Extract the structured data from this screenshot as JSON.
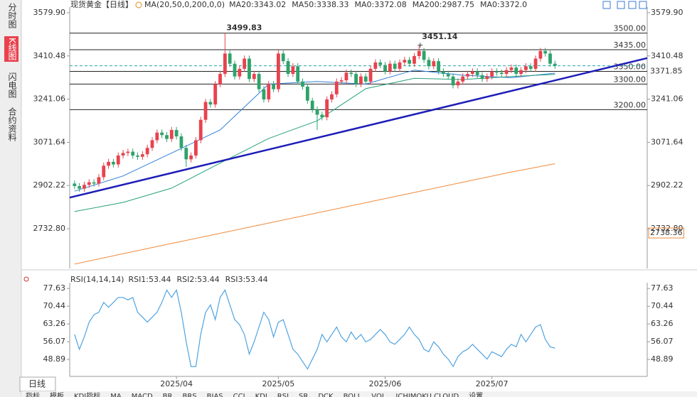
{
  "sidebar_tabs": [
    "分时图",
    "K线图",
    "闪电图",
    "合约资料"
  ],
  "selected_tab": 1,
  "timeframe": "日线",
  "indicator_tabs": [
    "指标",
    "模板",
    "KDJ指标",
    "MA",
    "MACD",
    "BR",
    "BRS",
    "BIAS",
    "CCI",
    "KDJ",
    "RSI",
    "SR",
    "DCK",
    "BOLL",
    "VOL",
    "ICHIMOKU CLOUD",
    "设置"
  ],
  "chart_data": [
    {
      "type": "candlestick",
      "title": "现货黄金",
      "period": "【日线】",
      "indicator_label": "MA(20,50,0,200,0,0)",
      "up_color": "#e8424e",
      "down_color": "#2ea36b",
      "xlim": [
        -1,
        118
      ],
      "open": [
        2910,
        2900,
        2890,
        2905,
        2915,
        2910,
        2935,
        2980,
        2995,
        2985,
        3020,
        3030,
        3035,
        3020,
        3015,
        3025,
        3050,
        3080,
        3110,
        3100,
        3085,
        3120,
        3095,
        3050,
        3005,
        3020,
        3080,
        3160,
        3230,
        3220,
        3300,
        3340,
        3420,
        3380,
        3330,
        3360,
        3400,
        3320,
        3340,
        3280,
        3240,
        3300,
        3280,
        3420,
        3390,
        3340,
        3370,
        3310,
        3290,
        3235,
        3200,
        3180,
        3170,
        3240,
        3260,
        3310,
        3315,
        3345,
        3340,
        3300,
        3330,
        3310,
        3360,
        3385,
        3375,
        3350,
        3380,
        3360,
        3385,
        3395,
        3380,
        3410,
        3430,
        3395,
        3370,
        3390,
        3350,
        3340,
        3330,
        3295,
        3310,
        3330,
        3340,
        3350,
        3335,
        3320,
        3330,
        3350,
        3345,
        3340,
        3355,
        3365,
        3340,
        3355,
        3370,
        3360,
        3400,
        3430,
        3420,
        3380
      ],
      "high": [
        2922,
        2912,
        2917,
        2927,
        2927,
        2947,
        2992,
        3007,
        3007,
        3032,
        3042,
        3047,
        3047,
        3032,
        3037,
        3062,
        3092,
        3122,
        3122,
        3112,
        3132,
        3132,
        3107,
        3062,
        3032,
        3092,
        3172,
        3242,
        3242,
        3312,
        3352,
        3499.83,
        3432,
        3392,
        3372,
        3412,
        3412,
        3352,
        3352,
        3292,
        3312,
        3312,
        3435,
        3432,
        3402,
        3382,
        3382,
        3322,
        3302,
        3247,
        3212,
        3192,
        3252,
        3272,
        3322,
        3327,
        3357,
        3357,
        3352,
        3342,
        3342,
        3372,
        3397,
        3397,
        3387,
        3392,
        3392,
        3397,
        3407,
        3407,
        3422,
        3451.14,
        3442,
        3407,
        3402,
        3402,
        3362,
        3352,
        3342,
        3322,
        3342,
        3352,
        3362,
        3362,
        3347,
        3342,
        3362,
        3362,
        3357,
        3367,
        3377,
        3377,
        3367,
        3382,
        3382,
        3412,
        3442,
        3442,
        3432,
        3392
      ],
      "low": [
        2888,
        2878,
        2878,
        2893,
        2898,
        2898,
        2923,
        2968,
        2973,
        2973,
        3008,
        3018,
        3008,
        3003,
        3003,
        3013,
        3038,
        3068,
        3088,
        3073,
        3073,
        3083,
        3038,
        2975,
        2993,
        3008,
        3068,
        3148,
        3208,
        3208,
        3288,
        3328,
        3368,
        3318,
        3318,
        3348,
        3308,
        3308,
        3268,
        3228,
        3228,
        3268,
        3268,
        3378,
        3328,
        3328,
        3298,
        3278,
        3223,
        3188,
        3120,
        3158,
        3158,
        3228,
        3248,
        3298,
        3303,
        3328,
        3288,
        3288,
        3298,
        3298,
        3348,
        3363,
        3338,
        3338,
        3348,
        3348,
        3373,
        3368,
        3368,
        3398,
        3383,
        3358,
        3358,
        3338,
        3328,
        3318,
        3283,
        3283,
        3298,
        3318,
        3328,
        3323,
        3308,
        3308,
        3318,
        3333,
        3328,
        3328,
        3343,
        3328,
        3328,
        3343,
        3348,
        3348,
        3388,
        3408,
        3368,
        3360
      ],
      "close": [
        2900,
        2890,
        2905,
        2915,
        2910,
        2935,
        2980,
        2995,
        2985,
        3020,
        3030,
        3035,
        3020,
        3015,
        3025,
        3050,
        3080,
        3110,
        3100,
        3085,
        3120,
        3095,
        3050,
        3005,
        3020,
        3080,
        3160,
        3230,
        3220,
        3300,
        3340,
        3420,
        3380,
        3330,
        3360,
        3400,
        3320,
        3340,
        3280,
        3240,
        3300,
        3280,
        3420,
        3390,
        3340,
        3370,
        3310,
        3290,
        3235,
        3200,
        3180,
        3170,
        3240,
        3260,
        3310,
        3315,
        3345,
        3340,
        3300,
        3330,
        3310,
        3360,
        3385,
        3375,
        3350,
        3380,
        3360,
        3385,
        3395,
        3380,
        3410,
        3430,
        3395,
        3370,
        3390,
        3350,
        3340,
        3330,
        3295,
        3310,
        3330,
        3340,
        3350,
        3335,
        3320,
        3330,
        3350,
        3345,
        3340,
        3355,
        3365,
        3340,
        3355,
        3370,
        3360,
        3400,
        3430,
        3420,
        3380,
        3372
      ],
      "marked_highs": [
        31,
        71
      ],
      "annotation_color": "#e8424e",
      "ylim": [
        2577,
        3602
      ],
      "yticks": [
        {
          "value": 3579.9,
          "label": "3579.90"
        },
        3410.48,
        3241.06,
        3071.64,
        2902.22,
        {
          "value": 2732.8,
          "label": "2732.80"
        }
      ],
      "grid": false,
      "series": [
        {
          "name": "MA20:3343.02",
          "color": "#2f7fd8",
          "x": [
            0,
            10,
            20,
            30,
            40,
            50,
            60,
            70,
            80,
            90,
            99
          ],
          "values": [
            2880,
            2940,
            3030,
            3120,
            3300,
            3310,
            3300,
            3355,
            3335,
            3325,
            3343.02
          ]
        },
        {
          "name": "MA50:3338.33",
          "color": "#27a07a",
          "x": [
            0,
            10,
            20,
            30,
            40,
            50,
            60,
            70,
            80,
            90,
            99
          ],
          "values": [
            2800,
            2836,
            2892,
            2990,
            3087,
            3156,
            3282,
            3323,
            3318,
            3330,
            3338.33
          ]
        },
        {
          "name": "MA200:2987.75",
          "color": "#f08a3c",
          "x": [
            0,
            10,
            20,
            30,
            40,
            50,
            60,
            70,
            80,
            90,
            99
          ],
          "values": [
            2594,
            2635,
            2675,
            2715,
            2755,
            2795,
            2835,
            2875,
            2915,
            2955,
            2987.75
          ]
        }
      ],
      "legend": [
        {
          "name": "MA20:3343.02",
          "color": "#2f7fd8"
        },
        {
          "name": "MA50:3338.33",
          "color": "#27a07a"
        },
        {
          "name": "MA0:3372.08",
          "color": "#23a3b0"
        },
        {
          "name": "MA200:2987.75",
          "color": "#f08a3c"
        },
        {
          "name": "MA0:3372.0",
          "color": "#d77fd6"
        }
      ],
      "levels": [
        {
          "value": 3500,
          "label": "3500.00"
        },
        {
          "value": 3435,
          "label": "3435.00"
        },
        {
          "value": 3350,
          "label": "3350.00"
        },
        {
          "value": 3300,
          "label": "3300.00"
        },
        {
          "value": 3200,
          "label": "3200.00"
        }
      ],
      "trendline": {
        "x": [
          -1,
          118
        ],
        "values": [
          2855,
          3402
        ],
        "color": "#1d1db8"
      },
      "price_markers": [
        {
          "value": 3371.85,
          "color": "#e08a1e"
        },
        {
          "value": 2738.36,
          "color": "#f08a3c"
        }
      ]
    },
    {
      "type": "line",
      "title": "RSI(14,14,14)",
      "xlim": [
        -1,
        118
      ],
      "color": "#4fa3e0",
      "values": [
        59,
        53,
        58,
        64,
        67,
        68,
        72,
        70,
        72,
        74,
        74,
        73,
        74,
        68,
        66,
        64,
        66,
        68,
        72,
        77,
        74,
        77,
        68,
        56,
        46,
        46,
        59,
        68,
        71,
        65,
        74,
        77,
        71,
        65,
        63,
        59,
        51,
        56,
        62,
        68,
        65,
        58,
        64,
        65,
        59,
        53,
        51,
        48,
        45,
        49,
        53,
        59,
        56,
        59,
        62,
        58,
        56,
        60,
        57,
        59,
        56,
        57,
        59,
        61,
        59,
        56,
        55,
        57,
        59,
        62,
        59,
        57,
        53,
        52,
        56,
        54,
        51,
        49,
        46,
        50,
        52,
        53,
        55,
        53,
        51,
        49,
        52,
        51,
        50,
        53,
        55,
        54,
        59,
        56,
        59,
        62,
        63,
        57,
        54,
        53.44
      ],
      "legend": [
        {
          "name": "RSI1:53.44",
          "color": "#2f7fd8"
        },
        {
          "name": "RSI2:53.44",
          "color": "#27a07a"
        },
        {
          "name": "RSI3:53.44",
          "color": "#23a3b0"
        }
      ],
      "ylim": [
        42,
        80
      ],
      "yticks": [
        77.63,
        70.44,
        63.26,
        56.07,
        48.89
      ],
      "xticks": [
        {
          "value": 21,
          "label": "2025/04"
        },
        {
          "value": 42,
          "label": "2025/05"
        },
        {
          "value": 64,
          "label": "2025/06"
        },
        {
          "value": 86,
          "label": "2025/07"
        }
      ]
    }
  ]
}
